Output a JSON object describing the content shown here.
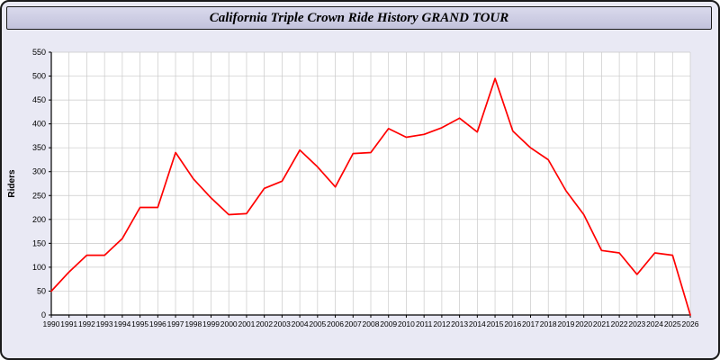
{
  "window": {
    "title": "California Triple Crown Ride History GRAND TOUR"
  },
  "chart_data": {
    "type": "line",
    "title": "California Triple Crown Ride History GRAND TOUR",
    "xlabel": "",
    "ylabel": "Riders",
    "ylim": [
      0,
      550
    ],
    "ytick_step": 50,
    "grid": true,
    "legend_position": "none",
    "line_color": "#ff0000",
    "grid_color": "#c9c9c9",
    "plot_background": "#ffffff",
    "page_background": "#e9e9f4",
    "x": [
      1990,
      1991,
      1992,
      1993,
      1994,
      1995,
      1996,
      1997,
      1998,
      1999,
      2000,
      2001,
      2002,
      2003,
      2004,
      2005,
      2006,
      2007,
      2008,
      2009,
      2010,
      2011,
      2012,
      2013,
      2014,
      2015,
      2016,
      2017,
      2018,
      2019,
      2020,
      2021,
      2022,
      2023,
      2024,
      2025,
      2026
    ],
    "series": [
      {
        "name": "Riders",
        "values": [
          50,
          90,
          125,
          125,
          160,
          225,
          225,
          340,
          285,
          245,
          210,
          212,
          265,
          280,
          345,
          310,
          268,
          338,
          340,
          390,
          372,
          378,
          392,
          412,
          383,
          495,
          385,
          350,
          325,
          260,
          210,
          135,
          130,
          85,
          130,
          125,
          0
        ]
      }
    ]
  }
}
